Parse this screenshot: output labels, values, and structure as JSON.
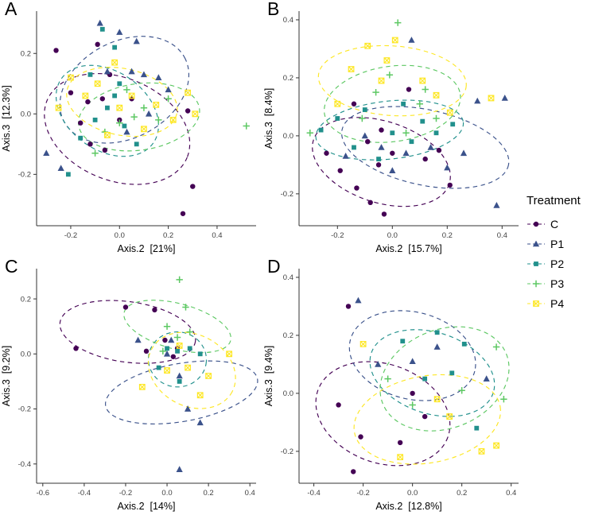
{
  "figure": {
    "legend": {
      "title": "Treatment",
      "position": "right",
      "entries": [
        {
          "label": "C",
          "color": "#440154",
          "shape": "circle"
        },
        {
          "label": "P1",
          "color": "#3B528B",
          "shape": "triangle"
        },
        {
          "label": "P2",
          "color": "#21908C",
          "shape": "square"
        },
        {
          "label": "P3",
          "color": "#5DC863",
          "shape": "plus"
        },
        {
          "label": "P4",
          "color": "#FDE725",
          "shape": "square-x"
        }
      ]
    }
  },
  "chart_data": [
    {
      "type": "scatter",
      "panel": "A",
      "xlabel": "Axis.2  [21%]",
      "ylabel": "Axis.3  [12.3%]",
      "xlim": [
        -0.34,
        0.56
      ],
      "ylim": [
        -0.37,
        0.34
      ],
      "xticks": [
        -0.2,
        0.0,
        0.2,
        0.4
      ],
      "yticks": [
        -0.2,
        0.0,
        0.2
      ],
      "grid": false,
      "ellipse_style": "dashed",
      "series": [
        {
          "name": "C",
          "points": [
            [
              -0.26,
              0.21
            ],
            [
              -0.09,
              0.23
            ],
            [
              -0.2,
              0.07
            ],
            [
              -0.13,
              0.04
            ],
            [
              -0.16,
              -0.03
            ],
            [
              -0.07,
              0.05
            ],
            [
              -0.04,
              0.13
            ],
            [
              0.0,
              -0.02
            ],
            [
              -0.06,
              -0.12
            ],
            [
              0.05,
              0.05
            ],
            [
              0.28,
              0.01
            ],
            [
              0.3,
              -0.24
            ],
            [
              0.26,
              -0.33
            ],
            [
              -0.12,
              -0.1
            ]
          ],
          "ellipse": {
            "cx": -0.01,
            "cy": -0.05,
            "rx": 0.31,
            "ry": 0.17,
            "angle": -22
          }
        },
        {
          "name": "P1",
          "points": [
            [
              -0.08,
              0.3
            ],
            [
              0.0,
              0.27
            ],
            [
              0.07,
              0.24
            ],
            [
              -0.05,
              0.14
            ],
            [
              0.1,
              0.13
            ],
            [
              0.16,
              0.12
            ],
            [
              0.2,
              0.08
            ],
            [
              -0.3,
              -0.13
            ],
            [
              -0.24,
              -0.18
            ],
            [
              0.03,
              -0.06
            ],
            [
              0.12,
              0.0
            ],
            [
              0.05,
              0.14
            ]
          ],
          "ellipse": {
            "cx": 0.02,
            "cy": 0.08,
            "rx": 0.28,
            "ry": 0.16,
            "angle": 28
          }
        },
        {
          "name": "P2",
          "points": [
            [
              -0.07,
              0.28
            ],
            [
              -0.02,
              0.22
            ],
            [
              -0.12,
              0.13
            ],
            [
              0.0,
              0.1
            ],
            [
              -0.05,
              0.02
            ],
            [
              -0.1,
              -0.02
            ],
            [
              -0.16,
              -0.08
            ],
            [
              0.02,
              -0.04
            ],
            [
              -0.21,
              -0.2
            ],
            [
              0.07,
              -0.1
            ],
            [
              -0.02,
              0.06
            ]
          ],
          "ellipse": {
            "cx": -0.05,
            "cy": 0.01,
            "rx": 0.23,
            "ry": 0.13,
            "angle": -35
          }
        },
        {
          "name": "P3",
          "points": [
            [
              0.03,
              0.08
            ],
            [
              0.1,
              0.02
            ],
            [
              0.16,
              -0.02
            ],
            [
              0.0,
              -0.03
            ],
            [
              -0.06,
              -0.06
            ],
            [
              0.2,
              0.05
            ],
            [
              0.52,
              -0.04
            ],
            [
              -0.1,
              -0.13
            ],
            [
              0.06,
              -0.01
            ]
          ],
          "ellipse": {
            "cx": 0.08,
            "cy": -0.01,
            "rx": 0.25,
            "ry": 0.11,
            "angle": 8
          }
        },
        {
          "name": "P4",
          "points": [
            [
              -0.2,
              0.12
            ],
            [
              -0.14,
              0.06
            ],
            [
              -0.09,
              0.1
            ],
            [
              -0.02,
              0.17
            ],
            [
              0.0,
              0.02
            ],
            [
              0.05,
              0.06
            ],
            [
              -0.05,
              -0.07
            ],
            [
              0.1,
              -0.05
            ],
            [
              0.15,
              0.03
            ],
            [
              0.22,
              -0.02
            ],
            [
              0.28,
              0.07
            ],
            [
              0.31,
              0.0
            ],
            [
              -0.25,
              0.02
            ]
          ],
          "ellipse": {
            "cx": 0.01,
            "cy": 0.04,
            "rx": 0.23,
            "ry": 0.11,
            "angle": -12
          }
        }
      ]
    },
    {
      "type": "scatter",
      "panel": "B",
      "xlabel": "Axis.2  [15.7%]",
      "ylabel": "Axis.3  [8.4%]",
      "xlim": [
        -0.34,
        0.46
      ],
      "ylim": [
        -0.31,
        0.43
      ],
      "xticks": [
        -0.2,
        0.0,
        0.2,
        0.4
      ],
      "yticks": [
        -0.2,
        0.0,
        0.2,
        0.4
      ],
      "grid": false,
      "ellipse_style": "dashed",
      "series": [
        {
          "name": "C",
          "points": [
            [
              -0.14,
              0.11
            ],
            [
              0.06,
              0.16
            ],
            [
              -0.04,
              0.02
            ],
            [
              -0.09,
              -0.02
            ],
            [
              0.0,
              -0.06
            ],
            [
              -0.19,
              -0.12
            ],
            [
              -0.13,
              -0.18
            ],
            [
              -0.08,
              -0.23
            ],
            [
              -0.03,
              -0.27
            ],
            [
              0.12,
              -0.08
            ],
            [
              0.17,
              -0.05
            ],
            [
              -0.24,
              -0.06
            ],
            [
              0.21,
              -0.17
            ],
            [
              -0.05,
              -0.1
            ]
          ],
          "ellipse": {
            "cx": -0.04,
            "cy": -0.09,
            "rx": 0.26,
            "ry": 0.14,
            "angle": -18
          }
        },
        {
          "name": "P1",
          "points": [
            [
              0.07,
              0.33
            ],
            [
              -0.1,
              0.0
            ],
            [
              -0.04,
              -0.04
            ],
            [
              0.05,
              -0.06
            ],
            [
              0.14,
              -0.04
            ],
            [
              0.26,
              -0.06
            ],
            [
              0.31,
              0.12
            ],
            [
              0.41,
              0.13
            ],
            [
              0.38,
              -0.24
            ],
            [
              0.2,
              -0.11
            ],
            [
              -0.17,
              -0.07
            ],
            [
              0.0,
              -0.12
            ]
          ],
          "ellipse": {
            "cx": 0.12,
            "cy": -0.04,
            "rx": 0.31,
            "ry": 0.13,
            "angle": -12
          }
        },
        {
          "name": "P2",
          "points": [
            [
              -0.26,
              0.02
            ],
            [
              -0.2,
              0.06
            ],
            [
              -0.1,
              0.09
            ],
            [
              0.04,
              0.11
            ],
            [
              0.11,
              0.05
            ],
            [
              0.0,
              0.01
            ],
            [
              -0.05,
              -0.08
            ],
            [
              0.16,
              0.01
            ],
            [
              0.22,
              0.04
            ],
            [
              -0.14,
              -0.04
            ],
            [
              0.07,
              -0.02
            ]
          ],
          "ellipse": {
            "cx": -0.01,
            "cy": 0.02,
            "rx": 0.27,
            "ry": 0.1,
            "angle": 6
          }
        },
        {
          "name": "P3",
          "points": [
            [
              0.02,
              0.39
            ],
            [
              -0.01,
              0.21
            ],
            [
              -0.06,
              0.15
            ],
            [
              0.1,
              0.11
            ],
            [
              0.16,
              0.06
            ],
            [
              -0.11,
              0.06
            ],
            [
              0.05,
              0.01
            ],
            [
              -0.3,
              0.01
            ],
            [
              0.12,
              0.16
            ]
          ],
          "ellipse": {
            "cx": 0.0,
            "cy": 0.11,
            "rx": 0.25,
            "ry": 0.13,
            "angle": 8
          }
        },
        {
          "name": "P4",
          "points": [
            [
              -0.09,
              0.31
            ],
            [
              0.01,
              0.33
            ],
            [
              -0.15,
              0.23
            ],
            [
              -0.04,
              0.19
            ],
            [
              0.11,
              0.19
            ],
            [
              0.36,
              0.13
            ],
            [
              0.21,
              0.08
            ],
            [
              -0.2,
              0.11
            ],
            [
              0.16,
              0.14
            ],
            [
              -0.02,
              0.26
            ]
          ],
          "ellipse": {
            "cx": 0.0,
            "cy": 0.19,
            "rx": 0.27,
            "ry": 0.12,
            "angle": -4
          }
        }
      ]
    },
    {
      "type": "scatter",
      "panel": "C",
      "xlabel": "Axis.2  [14%]",
      "ylabel": "Axis.3  [9.2%]",
      "xlim": [
        -0.63,
        0.43
      ],
      "ylim": [
        -0.47,
        0.31
      ],
      "xticks": [
        -0.6,
        -0.4,
        -0.2,
        0.0,
        0.2,
        0.4
      ],
      "yticks": [
        -0.4,
        -0.2,
        0.0,
        0.2
      ],
      "grid": false,
      "ellipse_style": "dashed",
      "series": [
        {
          "name": "C",
          "points": [
            [
              -0.44,
              0.02
            ],
            [
              -0.2,
              0.17
            ],
            [
              -0.06,
              0.16
            ],
            [
              -0.01,
              0.05
            ],
            [
              0.05,
              0.02
            ],
            [
              -0.1,
              0.01
            ],
            [
              0.03,
              -0.01
            ]
          ],
          "ellipse": {
            "cx": -0.19,
            "cy": 0.08,
            "rx": 0.33,
            "ry": 0.11,
            "angle": -8
          }
        },
        {
          "name": "P1",
          "points": [
            [
              -0.14,
              0.05
            ],
            [
              0.0,
              0.0
            ],
            [
              0.06,
              -0.08
            ],
            [
              0.1,
              -0.2
            ],
            [
              0.16,
              -0.25
            ],
            [
              0.06,
              -0.42
            ],
            [
              0.02,
              0.05
            ]
          ],
          "ellipse": {
            "cx": 0.07,
            "cy": -0.14,
            "rx": 0.14,
            "ry": 0.28,
            "angle": -80
          }
        },
        {
          "name": "P2",
          "points": [
            [
              0.0,
              0.02
            ],
            [
              0.05,
              0.01
            ],
            [
              0.11,
              0.02
            ],
            [
              0.16,
              0.0
            ],
            [
              -0.04,
              -0.05
            ],
            [
              0.06,
              -0.1
            ]
          ],
          "ellipse": {
            "cx": 0.05,
            "cy": -0.02,
            "rx": 0.14,
            "ry": 0.1,
            "angle": -5
          }
        },
        {
          "name": "P3",
          "points": [
            [
              0.06,
              0.27
            ],
            [
              0.09,
              0.17
            ],
            [
              0.0,
              0.1
            ],
            [
              0.05,
              0.06
            ],
            [
              0.11,
              0.08
            ],
            [
              -0.02,
              0.01
            ]
          ],
          "ellipse": {
            "cx": 0.05,
            "cy": 0.1,
            "rx": 0.11,
            "ry": 0.2,
            "angle": 75
          }
        },
        {
          "name": "P4",
          "points": [
            [
              -0.12,
              -0.12
            ],
            [
              0.0,
              -0.06
            ],
            [
              0.1,
              -0.05
            ],
            [
              0.2,
              -0.08
            ],
            [
              0.3,
              0.0
            ],
            [
              0.16,
              -0.15
            ],
            [
              0.06,
              0.03
            ]
          ],
          "ellipse": {
            "cx": 0.12,
            "cy": -0.06,
            "rx": 0.22,
            "ry": 0.13,
            "angle": -28
          }
        }
      ]
    },
    {
      "type": "scatter",
      "panel": "D",
      "xlabel": "Axis.2  [12.8%]",
      "ylabel": "Axis.3  [9.4%]",
      "xlim": [
        -0.46,
        0.43
      ],
      "ylim": [
        -0.31,
        0.43
      ],
      "xticks": [
        -0.4,
        -0.2,
        0.0,
        0.2,
        0.4
      ],
      "yticks": [
        -0.2,
        0.0,
        0.2,
        0.4
      ],
      "grid": false,
      "ellipse_style": "dashed",
      "series": [
        {
          "name": "C",
          "points": [
            [
              -0.26,
              0.3
            ],
            [
              -0.3,
              -0.04
            ],
            [
              -0.21,
              -0.15
            ],
            [
              -0.24,
              -0.27
            ],
            [
              0.0,
              0.0
            ],
            [
              0.05,
              -0.08
            ],
            [
              -0.05,
              -0.17
            ]
          ],
          "ellipse": {
            "cx": -0.12,
            "cy": -0.07,
            "rx": 0.28,
            "ry": 0.17,
            "angle": -20
          }
        },
        {
          "name": "P1",
          "points": [
            [
              -0.22,
              0.32
            ],
            [
              -0.14,
              0.1
            ],
            [
              0.1,
              0.16
            ],
            [
              0.3,
              0.05
            ],
            [
              0.0,
              0.11
            ]
          ],
          "ellipse": {
            "cx": 0.0,
            "cy": 0.13,
            "rx": 0.26,
            "ry": 0.15,
            "angle": -14
          }
        },
        {
          "name": "P2",
          "points": [
            [
              -0.04,
              0.18
            ],
            [
              0.1,
              0.21
            ],
            [
              0.16,
              0.07
            ],
            [
              0.26,
              -0.12
            ],
            [
              0.21,
              0.17
            ],
            [
              0.05,
              0.05
            ]
          ],
          "ellipse": {
            "cx": 0.08,
            "cy": 0.07,
            "rx": 0.26,
            "ry": 0.14,
            "angle": -18
          }
        },
        {
          "name": "P3",
          "points": [
            [
              -0.1,
              0.05
            ],
            [
              0.34,
              0.16
            ],
            [
              0.37,
              -0.02
            ],
            [
              0.0,
              -0.04
            ],
            [
              0.2,
              0.01
            ]
          ],
          "ellipse": {
            "cx": 0.13,
            "cy": 0.05,
            "rx": 0.27,
            "ry": 0.17,
            "angle": 22
          }
        },
        {
          "name": "P4",
          "points": [
            [
              -0.2,
              0.17
            ],
            [
              -0.05,
              -0.22
            ],
            [
              0.15,
              -0.08
            ],
            [
              0.34,
              -0.18
            ],
            [
              0.1,
              -0.02
            ],
            [
              0.28,
              -0.2
            ]
          ],
          "ellipse": {
            "cx": 0.06,
            "cy": -0.09,
            "rx": 0.3,
            "ry": 0.15,
            "angle": 10
          }
        }
      ]
    }
  ]
}
